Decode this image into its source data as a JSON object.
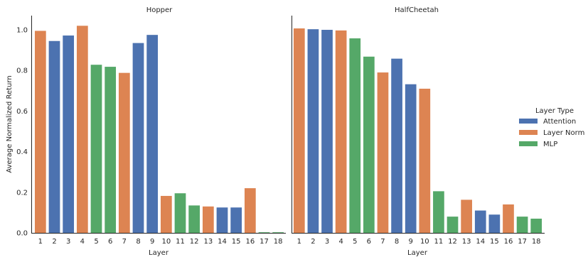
{
  "chart_data": [
    {
      "type": "bar",
      "title": "Hopper",
      "xlabel": "Layer",
      "ylabel": "Average Normalized Return",
      "ylim": [
        0,
        1.07
      ],
      "yticks": [
        "0.0",
        "0.2",
        "0.4",
        "0.6",
        "0.8",
        "1.0"
      ],
      "categories": [
        "1",
        "2",
        "3",
        "4",
        "5",
        "6",
        "7",
        "8",
        "9",
        "10",
        "11",
        "12",
        "13",
        "14",
        "15",
        "16",
        "17",
        "18"
      ],
      "values": [
        0.995,
        0.945,
        0.972,
        1.02,
        0.828,
        0.818,
        0.788,
        0.935,
        0.975,
        0.182,
        0.195,
        0.135,
        0.13,
        0.125,
        0.125,
        0.22,
        0.003,
        0.003
      ],
      "layer_types": [
        "Layer Norm",
        "Attention",
        "Attention",
        "Layer Norm",
        "MLP",
        "MLP",
        "Layer Norm",
        "Attention",
        "Attention",
        "Layer Norm",
        "MLP",
        "MLP",
        "Layer Norm",
        "Attention",
        "Attention",
        "Layer Norm",
        "MLP",
        "MLP"
      ]
    },
    {
      "type": "bar",
      "title": "HalfCheetah",
      "xlabel": "Layer",
      "ylim": [
        0,
        1.07
      ],
      "categories": [
        "1",
        "2",
        "3",
        "4",
        "5",
        "6",
        "7",
        "8",
        "9",
        "10",
        "11",
        "12",
        "13",
        "14",
        "15",
        "16",
        "17",
        "18"
      ],
      "values": [
        1.007,
        1.003,
        1.0,
        0.997,
        0.958,
        0.868,
        0.79,
        0.858,
        0.732,
        0.71,
        0.205,
        0.08,
        0.163,
        0.11,
        0.09,
        0.14,
        0.08,
        0.07
      ],
      "layer_types": [
        "Layer Norm",
        "Attention",
        "Attention",
        "Layer Norm",
        "MLP",
        "MLP",
        "Layer Norm",
        "Attention",
        "Attention",
        "Layer Norm",
        "MLP",
        "MLP",
        "Layer Norm",
        "Attention",
        "Attention",
        "Layer Norm",
        "MLP",
        "MLP"
      ]
    }
  ],
  "legend": {
    "title": "Layer Type",
    "placement": "right",
    "items": [
      {
        "label": "Attention",
        "color": "#4c72b0"
      },
      {
        "label": "Layer Norm",
        "color": "#dd8452"
      },
      {
        "label": "MLP",
        "color": "#55a868"
      }
    ]
  }
}
